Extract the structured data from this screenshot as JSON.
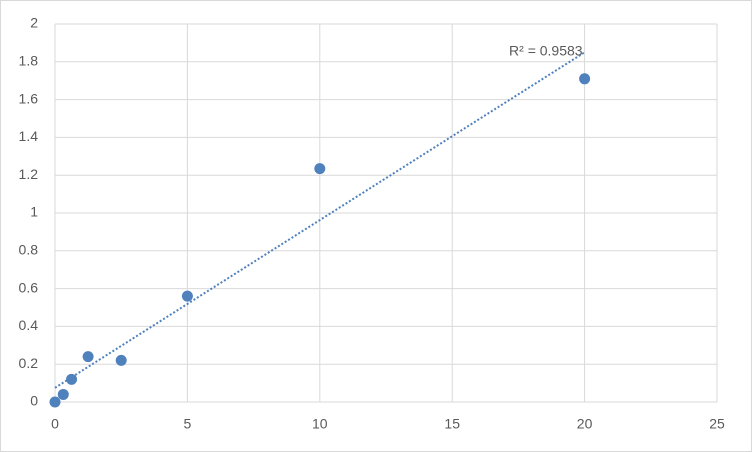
{
  "chart_data": {
    "type": "scatter",
    "x": [
      0,
      0.3125,
      0.625,
      1.25,
      2.5,
      5,
      10,
      20
    ],
    "values": [
      0,
      0.04,
      0.12,
      0.24,
      0.22,
      0.56,
      1.235,
      1.71
    ],
    "color": "#4f81bd",
    "xlim": [
      0,
      25
    ],
    "xticks": [
      0,
      5,
      10,
      15,
      20,
      25
    ],
    "ylim": [
      0,
      2
    ],
    "yticks": [
      0,
      0.2,
      0.4,
      0.6,
      0.8,
      1,
      1.2,
      1.4,
      1.6,
      1.8,
      2
    ],
    "grid": true,
    "trendline": {
      "label": "R² = 0.9583",
      "x": [
        0,
        20
      ],
      "values": [
        0.075,
        1.85
      ],
      "color": "#4f81bd"
    }
  }
}
